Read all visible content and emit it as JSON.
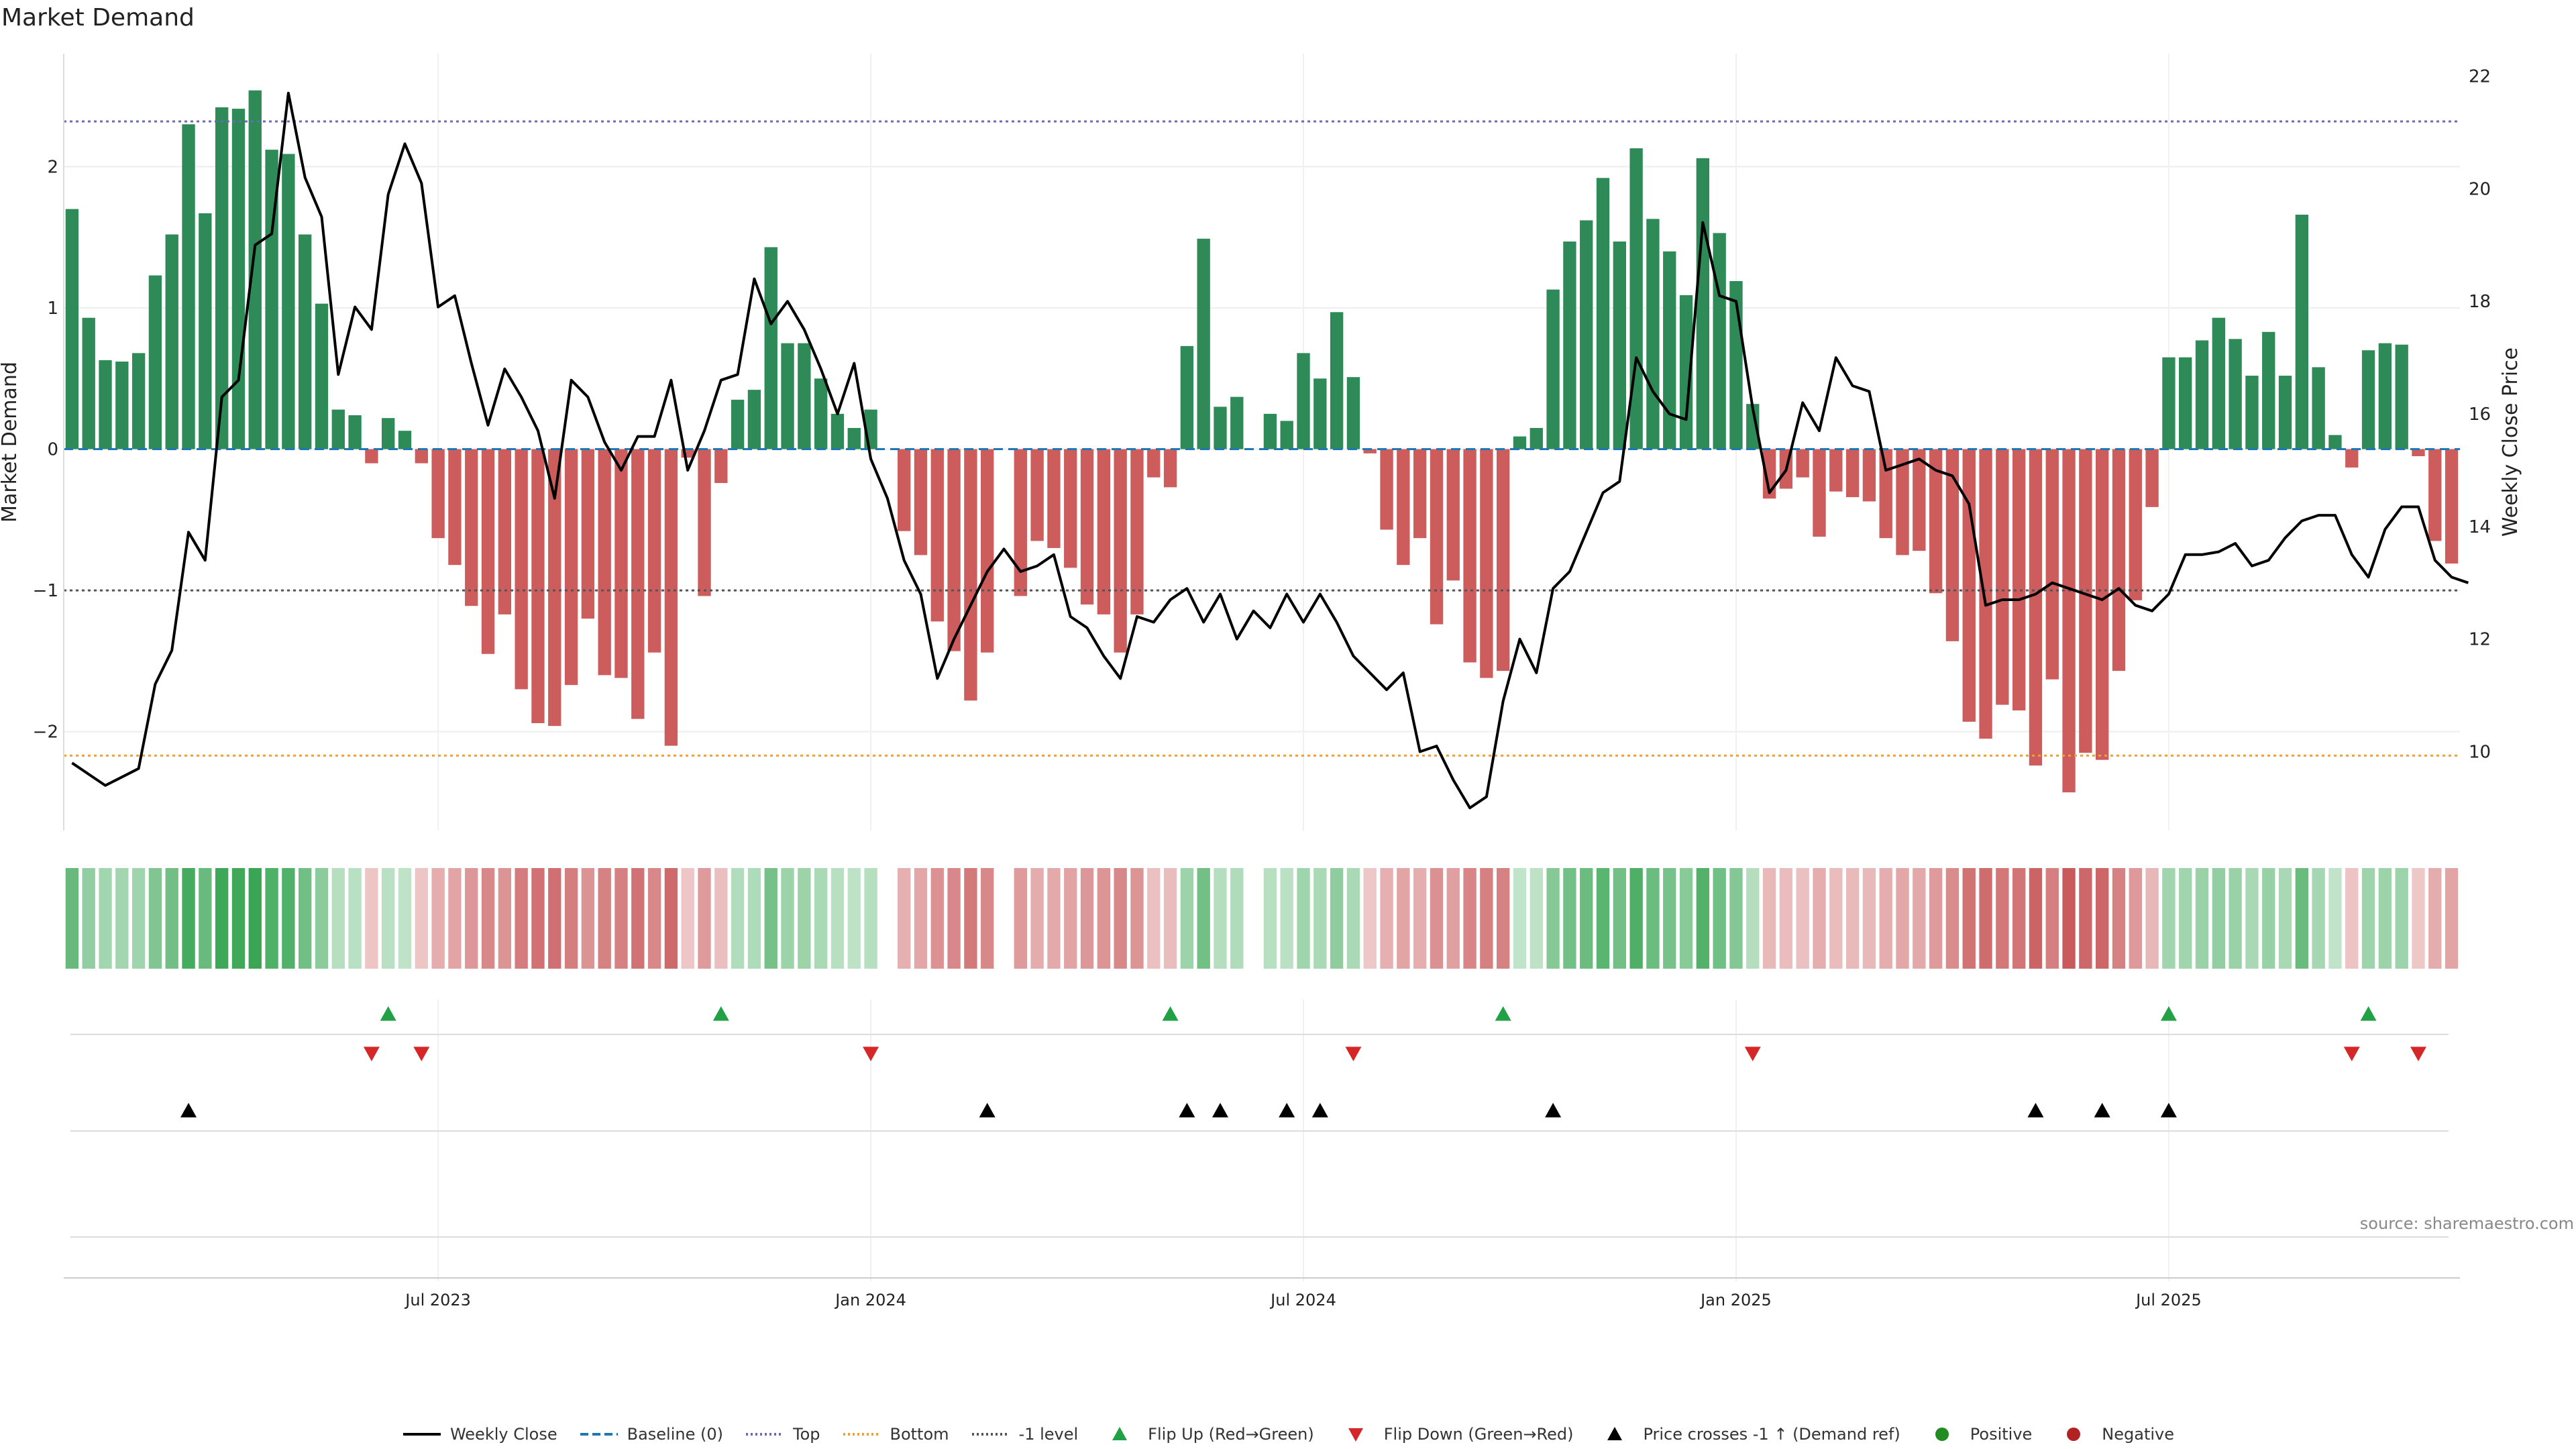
{
  "page": {
    "title": "Market Demand",
    "source": "source: sharemaestro.com"
  },
  "legend": [
    {
      "key": "weekly_close",
      "label": "Weekly Close",
      "kind": "line",
      "color": "#000000"
    },
    {
      "key": "baseline",
      "label": "Baseline (0)",
      "kind": "dash",
      "color": "#1f77b4"
    },
    {
      "key": "top",
      "label": "Top",
      "kind": "dot",
      "color": "#6a6ab8"
    },
    {
      "key": "bottom",
      "label": "Bottom",
      "kind": "dot",
      "color": "#f0a030"
    },
    {
      "key": "minus1",
      "label": "-1 level",
      "kind": "dot",
      "color": "#555555"
    },
    {
      "key": "flip_up",
      "label": "Flip Up (Red→Green)",
      "kind": "tri_up",
      "color": "#22a045"
    },
    {
      "key": "flip_down",
      "label": "Flip Down (Green→Red)",
      "kind": "tri_down",
      "color": "#d62728"
    },
    {
      "key": "cross",
      "label": "Price crosses -1 ↑ (Demand ref)",
      "kind": "tri_up",
      "color": "#000000"
    },
    {
      "key": "positive",
      "label": "Positive",
      "kind": "circle",
      "color": "#228b22"
    },
    {
      "key": "negative",
      "label": "Negative",
      "kind": "circle",
      "color": "#b22222"
    }
  ],
  "chart_data": {
    "type": "bar",
    "title": "Market Demand",
    "ylabel": "Market Demand",
    "y2label": "Weekly Close Price",
    "ylim": [
      -2.7,
      2.8
    ],
    "y2lim": [
      8.6,
      22.4
    ],
    "yticks": [
      2,
      1,
      0,
      -1,
      -2
    ],
    "ytick_labels": [
      "2",
      "1",
      "0",
      "−1",
      "−2"
    ],
    "y2ticks": [
      22,
      20,
      18,
      16,
      14,
      12,
      10
    ],
    "x_ticks": [
      {
        "week": 22,
        "label": "Jul 2023"
      },
      {
        "week": 48,
        "label": "Jan 2024"
      },
      {
        "week": 74,
        "label": "Jul 2024"
      },
      {
        "week": 100,
        "label": "Jan 2025"
      },
      {
        "week": 126,
        "label": "Jul 2025"
      }
    ],
    "reference_lines": {
      "top": 2.32,
      "bottom": -2.17,
      "minus_one": -1.0,
      "baseline": 0
    },
    "colors": {
      "positive": "#2e8b57",
      "negative": "#cd5c5c",
      "price": "#000000"
    },
    "demand": [
      1.7,
      0.93,
      0.63,
      0.62,
      0.68,
      1.23,
      1.52,
      2.3,
      1.67,
      2.42,
      2.41,
      2.54,
      2.12,
      2.09,
      1.52,
      1.03,
      0.28,
      0.24,
      -0.1,
      0.22,
      0.13,
      -0.1,
      -0.63,
      -0.82,
      -1.11,
      -1.45,
      -1.17,
      -1.7,
      -1.94,
      -1.96,
      -1.67,
      -1.2,
      -1.6,
      -1.62,
      -1.91,
      -1.44,
      -2.1,
      -0.06,
      -1.04,
      -0.24,
      0.35,
      0.42,
      1.43,
      0.75,
      0.75,
      0.5,
      0.25,
      0.15,
      0.28,
      0.0,
      -0.58,
      -0.75,
      -1.22,
      -1.43,
      -1.78,
      -1.44,
      0.0,
      -1.04,
      -0.65,
      -0.7,
      -0.84,
      -1.1,
      -1.17,
      -1.44,
      -1.17,
      -0.2,
      -0.27,
      0.73,
      1.49,
      0.3,
      0.37,
      0.0,
      0.25,
      0.2,
      0.68,
      0.5,
      0.97,
      0.51,
      -0.03,
      -0.57,
      -0.82,
      -0.63,
      -1.24,
      -0.93,
      -1.51,
      -1.62,
      -1.57,
      0.09,
      0.15,
      1.13,
      1.47,
      1.62,
      1.92,
      1.47,
      2.13,
      1.63,
      1.4,
      1.09,
      2.06,
      1.53,
      1.19,
      0.32,
      -0.35,
      -0.28,
      -0.2,
      -0.62,
      -0.3,
      -0.34,
      -0.37,
      -0.63,
      -0.75,
      -0.72,
      -1.02,
      -1.36,
      -1.93,
      -2.05,
      -1.81,
      -1.85,
      -2.24,
      -1.63,
      -2.43,
      -2.15,
      -2.2,
      -1.57,
      -1.07,
      -0.41,
      0.65,
      0.65,
      0.77,
      0.93,
      0.78,
      0.52,
      0.83,
      0.52,
      1.66,
      0.58,
      0.1,
      -0.13,
      0.7,
      0.75,
      0.74,
      -0.05,
      -0.65,
      -0.81
    ],
    "weekly_close": [
      9.8,
      9.6,
      9.4,
      9.55,
      9.7,
      11.2,
      11.8,
      13.9,
      13.4,
      16.3,
      16.6,
      19.0,
      19.2,
      21.7,
      20.2,
      19.5,
      16.7,
      17.9,
      17.5,
      19.9,
      20.8,
      20.1,
      17.9,
      18.1,
      16.9,
      15.8,
      16.8,
      16.3,
      15.7,
      14.5,
      16.6,
      16.3,
      15.5,
      15.0,
      15.6,
      15.6,
      16.6,
      15.0,
      15.7,
      16.6,
      16.7,
      18.4,
      17.6,
      18.0,
      17.5,
      16.8,
      16.0,
      16.9,
      15.2,
      14.5,
      13.4,
      12.8,
      11.3,
      12.0,
      12.6,
      13.2,
      13.6,
      13.2,
      13.3,
      13.5,
      12.4,
      12.2,
      11.7,
      11.3,
      12.4,
      12.3,
      12.7,
      12.9,
      12.3,
      12.8,
      12.0,
      12.5,
      12.2,
      12.8,
      12.3,
      12.8,
      12.3,
      11.7,
      11.4,
      11.1,
      11.4,
      10.0,
      10.1,
      9.5,
      9.0,
      9.2,
      10.9,
      12.0,
      11.4,
      12.9,
      13.2,
      13.9,
      14.6,
      14.8,
      17.0,
      16.4,
      16.0,
      15.9,
      19.4,
      18.1,
      18.0,
      16.1,
      14.6,
      15.0,
      16.2,
      15.7,
      17.0,
      16.5,
      16.4,
      15.0,
      15.1,
      15.2,
      15.0,
      14.9,
      14.4,
      12.6,
      12.7,
      12.7,
      12.8,
      13.0,
      12.9,
      12.8,
      12.7,
      12.9,
      12.6,
      12.5,
      12.8,
      13.5,
      13.5,
      13.55,
      13.7,
      13.3,
      13.4,
      13.8,
      14.1,
      14.2,
      14.2,
      13.5,
      13.1,
      13.95,
      14.35,
      14.35,
      13.4,
      13.1,
      13.0
    ],
    "flip_up_weeks": [
      19,
      39,
      66,
      86,
      126,
      138
    ],
    "flip_down_weeks": [
      18,
      21,
      48,
      77,
      101,
      137,
      141
    ],
    "price_cross_weeks": [
      7,
      55,
      67,
      69,
      73,
      75,
      89,
      118,
      122,
      126
    ]
  }
}
